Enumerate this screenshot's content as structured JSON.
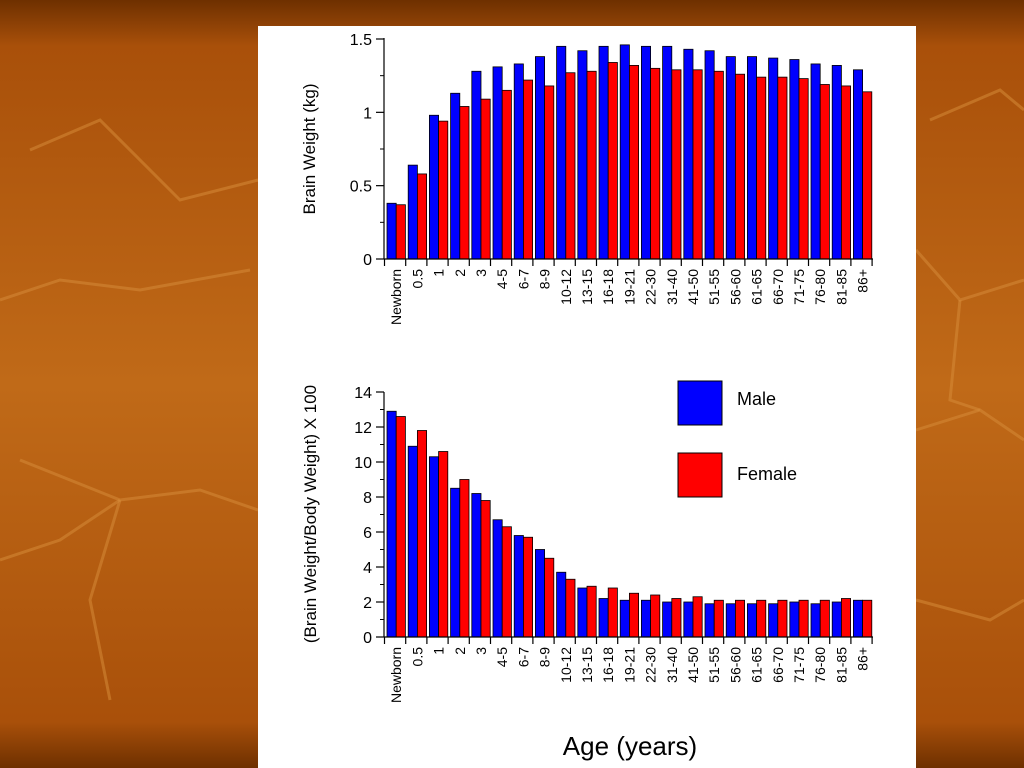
{
  "colors": {
    "male": "#0000ff",
    "female": "#ff0000",
    "background_dark": "#7a3600",
    "background_mid": "#b4580c",
    "background_light": "#c9741e"
  },
  "chart_data": [
    {
      "type": "bar",
      "title": "",
      "xlabel": "",
      "ylabel": "Brain Weight (kg)",
      "ylim": [
        0,
        1.5
      ],
      "yticks": [
        "0",
        "0.5",
        "1",
        "1.5"
      ],
      "categories": [
        "Newborn",
        "0.5",
        "1",
        "2",
        "3",
        "4-5",
        "6-7",
        "8-9",
        "10-12",
        "13-15",
        "16-18",
        "19-21",
        "22-30",
        "31-40",
        "41-50",
        "51-55",
        "56-60",
        "61-65",
        "66-70",
        "71-75",
        "76-80",
        "81-85",
        "86+"
      ],
      "series": [
        {
          "name": "Male",
          "values": [
            0.38,
            0.64,
            0.98,
            1.13,
            1.28,
            1.31,
            1.33,
            1.38,
            1.45,
            1.42,
            1.45,
            1.46,
            1.45,
            1.45,
            1.43,
            1.42,
            1.38,
            1.38,
            1.37,
            1.36,
            1.33,
            1.32,
            1.29
          ]
        },
        {
          "name": "Female",
          "values": [
            0.37,
            0.58,
            0.94,
            1.04,
            1.09,
            1.15,
            1.22,
            1.18,
            1.27,
            1.28,
            1.34,
            1.32,
            1.3,
            1.29,
            1.29,
            1.28,
            1.26,
            1.24,
            1.24,
            1.23,
            1.19,
            1.18,
            1.14
          ]
        }
      ],
      "grid": false,
      "legend": "none"
    },
    {
      "type": "bar",
      "title": "",
      "xlabel": "Age (years)",
      "ylabel": "(Brain Weight/Body Weight) X 100",
      "ylim": [
        0,
        14
      ],
      "yticks": [
        "0",
        "2",
        "4",
        "6",
        "8",
        "10",
        "12",
        "14"
      ],
      "categories": [
        "Newborn",
        "0.5",
        "1",
        "2",
        "3",
        "4-5",
        "6-7",
        "8-9",
        "10-12",
        "13-15",
        "16-18",
        "19-21",
        "22-30",
        "31-40",
        "41-50",
        "51-55",
        "56-60",
        "61-65",
        "66-70",
        "71-75",
        "76-80",
        "81-85",
        "86+"
      ],
      "series": [
        {
          "name": "Male",
          "values": [
            12.9,
            10.9,
            10.3,
            8.5,
            8.2,
            6.7,
            5.8,
            5.0,
            3.7,
            2.8,
            2.2,
            2.1,
            2.1,
            2.0,
            2.0,
            1.9,
            1.9,
            1.9,
            1.9,
            2.0,
            1.9,
            2.0,
            2.1
          ]
        },
        {
          "name": "Female",
          "values": [
            12.6,
            11.8,
            10.6,
            9.0,
            7.8,
            6.3,
            5.7,
            4.5,
            3.3,
            2.9,
            2.8,
            2.5,
            2.4,
            2.2,
            2.3,
            2.1,
            2.1,
            2.1,
            2.1,
            2.1,
            2.1,
            2.2,
            2.1
          ]
        }
      ],
      "grid": false,
      "legend": "top-right",
      "legend_entries": [
        "Male",
        "Female"
      ]
    }
  ]
}
